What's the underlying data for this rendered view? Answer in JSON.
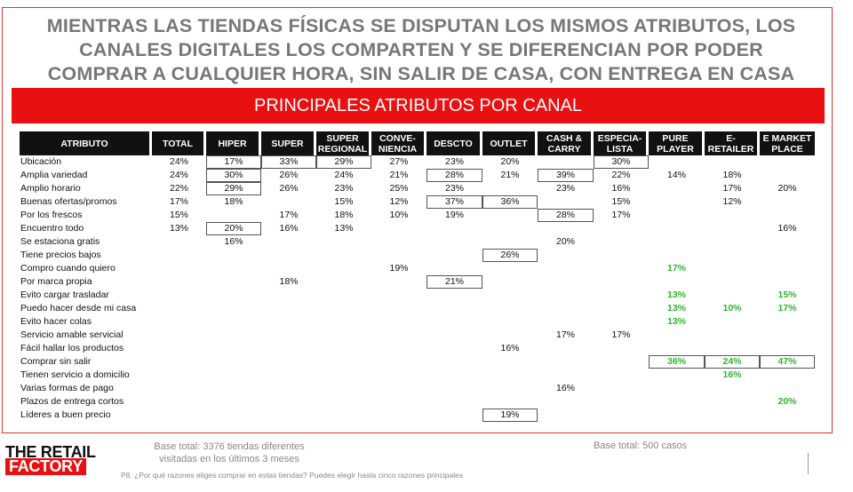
{
  "title_lines": [
    "MIENTRAS LAS TIENDAS FÍSICAS SE DISPUTAN LOS MISMOS ATRIBUTOS, LOS",
    "CANALES DIGITALES LOS COMPARTEN Y SE DIFERENCIAN POR PODER",
    "COMPRAR A CUALQUIER HORA, SIN SALIR DE CASA, CON ENTREGA EN CASA"
  ],
  "banner": "PRINCIPALES ATRIBUTOS POR CANAL",
  "table": {
    "columns": [
      [
        "ATRIBUTO"
      ],
      [
        "TOTAL"
      ],
      [
        "HIPER"
      ],
      [
        "SUPER"
      ],
      [
        "SUPER",
        "REGIONAL"
      ],
      [
        "CONVE-",
        "NIENCIA"
      ],
      [
        "DESCTO"
      ],
      [
        "OUTLET"
      ],
      [
        "CASH &",
        "CARRY"
      ],
      [
        "ESPECIA-",
        "LISTA"
      ],
      [
        "PURE",
        "PLAYER"
      ],
      [
        "E-",
        "RETAILER"
      ],
      [
        "E MARKET",
        "PLACE"
      ]
    ],
    "rows": [
      [
        "Ubicación",
        "24%",
        "17%",
        "33%",
        "29%",
        "27%",
        "23%",
        "20%",
        "",
        "30%",
        "",
        "",
        ""
      ],
      [
        "Amplia variedad",
        "24%",
        "30%",
        "26%",
        "24%",
        "21%",
        "28%",
        "21%",
        "39%",
        "22%",
        "14%",
        "18%",
        ""
      ],
      [
        "Amplio horario",
        "22%",
        "29%",
        "26%",
        "23%",
        "25%",
        "23%",
        "",
        "23%",
        "16%",
        "",
        "17%",
        "20%"
      ],
      [
        "Buenas ofertas/promos",
        "17%",
        "18%",
        "",
        "15%",
        "12%",
        "37%",
        "36%",
        "",
        "15%",
        "",
        "12%",
        ""
      ],
      [
        "Por los frescos",
        "15%",
        "",
        "17%",
        "18%",
        "10%",
        "19%",
        "",
        "28%",
        "17%",
        "",
        "",
        ""
      ],
      [
        "Encuentro todo",
        "13%",
        "20%",
        "16%",
        "13%",
        "",
        "",
        "",
        "",
        "",
        "",
        "",
        "16%"
      ],
      [
        "Se estaciona gratis",
        "",
        "16%",
        "",
        "",
        "",
        "",
        "",
        "20%",
        "",
        "",
        "",
        ""
      ],
      [
        "Tiene precios bajos",
        "",
        "",
        "",
        "",
        "",
        "",
        "26%",
        "",
        "",
        "",
        "",
        ""
      ],
      [
        "Compro cuando quiero",
        "",
        "",
        "",
        "",
        "19%",
        "",
        "",
        "",
        "",
        "17%",
        "",
        ""
      ],
      [
        "Por marca propia",
        "",
        "",
        "18%",
        "",
        "",
        "21%",
        "",
        "",
        "",
        "",
        "",
        ""
      ],
      [
        "Evito cargar trasladar",
        "",
        "",
        "",
        "",
        "",
        "",
        "",
        "",
        "",
        "13%",
        "",
        "15%"
      ],
      [
        "Puedo hacer desde mi casa",
        "",
        "",
        "",
        "",
        "",
        "",
        "",
        "",
        "",
        "13%",
        "10%",
        "17%"
      ],
      [
        "Evito hacer colas",
        "",
        "",
        "",
        "",
        "",
        "",
        "",
        "",
        "",
        "13%",
        "",
        ""
      ],
      [
        "Servicio amable servicial",
        "",
        "",
        "",
        "",
        "",
        "",
        "",
        "17%",
        "17%",
        "",
        "",
        ""
      ],
      [
        "Fácil hallar los productos",
        "",
        "",
        "",
        "",
        "",
        "",
        "16%",
        "",
        "",
        "",
        "",
        ""
      ],
      [
        "Comprar sin salir",
        "",
        "",
        "",
        "",
        "",
        "",
        "",
        "",
        "",
        "36%",
        "24%",
        "47%"
      ],
      [
        "Tienen servicio a domicilio",
        "",
        "",
        "",
        "",
        "",
        "",
        "",
        "",
        "",
        "",
        "16%",
        ""
      ],
      [
        "Varias formas de pago",
        "",
        "",
        "",
        "",
        "",
        "",
        "",
        "16%",
        "",
        "",
        "",
        ""
      ],
      [
        "Plazos de entrega cortos",
        "",
        "",
        "",
        "",
        "",
        "",
        "",
        "",
        "",
        "",
        "",
        "20%"
      ],
      [
        "Líderes a buen precio",
        "",
        "",
        "",
        "",
        "",
        "",
        "19%",
        "",
        "",
        "",
        "",
        ""
      ]
    ],
    "boxed": [
      [
        0,
        2
      ],
      [
        0,
        3
      ],
      [
        0,
        4
      ],
      [
        0,
        9
      ],
      [
        1,
        2
      ],
      [
        1,
        6
      ],
      [
        1,
        8
      ],
      [
        2,
        2
      ],
      [
        3,
        6
      ],
      [
        3,
        7
      ],
      [
        4,
        8
      ],
      [
        5,
        2
      ],
      [
        7,
        7
      ],
      [
        9,
        6
      ],
      [
        15,
        10
      ],
      [
        15,
        11
      ],
      [
        15,
        12
      ],
      [
        19,
        7
      ]
    ],
    "green_columns": [
      10,
      11,
      12
    ],
    "colors": {
      "header_bg": "#111111",
      "banner_bg": "#e81010",
      "highlight": "#2fb52f"
    }
  },
  "logo": {
    "line1": "THE RETAIL",
    "line2": "FACTORY"
  },
  "base_left": [
    "Base total: 3376 tiendas diferentes",
    "visitadas en los últimos 3 meses"
  ],
  "base_right": "Base total: 500 casos",
  "footnote": "P8. ¿Por qué razones eliges comprar en estas tiendas? Puedes elegir hasta cinco razones principales"
}
